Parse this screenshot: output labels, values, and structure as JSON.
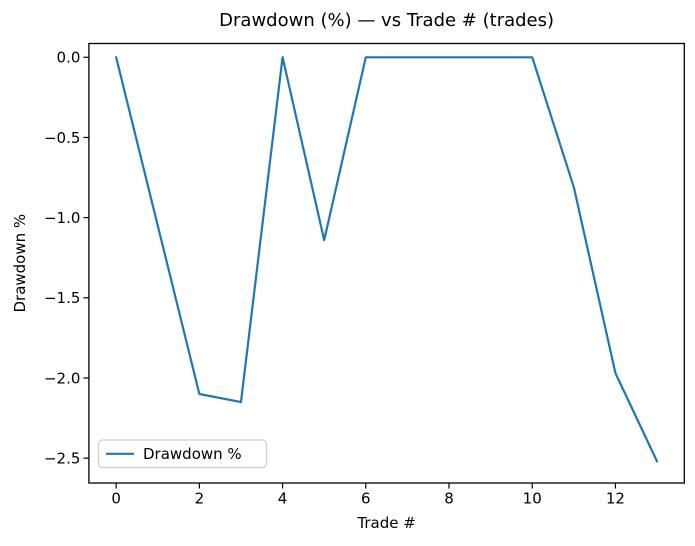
{
  "chart_data": {
    "type": "line",
    "title": "Drawdown (%) — vs Trade # (trades)",
    "xlabel": "Trade #",
    "ylabel": "Drawdown %",
    "x": [
      0,
      1,
      2,
      3,
      4,
      5,
      6,
      7,
      8,
      9,
      10,
      11,
      12,
      13
    ],
    "series": [
      {
        "name": "Drawdown %",
        "color": "#1f77b4",
        "values": [
          0.0,
          -1.05,
          -2.1,
          -2.15,
          0.0,
          -1.14,
          0.0,
          0.0,
          0.0,
          0.0,
          0.0,
          -0.81,
          -1.97,
          -2.52
        ]
      }
    ],
    "xlim": [
      -0.655,
      13.655
    ],
    "ylim": [
      -2.655,
      0.086
    ],
    "xticks": {
      "values": [
        0,
        2,
        4,
        6,
        8,
        10,
        12
      ],
      "labels": [
        "0",
        "2",
        "4",
        "6",
        "8",
        "10",
        "12"
      ]
    },
    "yticks": {
      "values": [
        0,
        -0.5,
        -1.0,
        -1.5,
        -2.0,
        -2.5
      ],
      "labels": [
        "0.0",
        "−0.5",
        "−1.0",
        "−1.5",
        "−2.0",
        "−2.5"
      ]
    },
    "legend": {
      "position": "lower left",
      "entries": [
        {
          "label": "Drawdown %",
          "color": "#1f77b4"
        }
      ]
    },
    "grid": false,
    "background": "#ffffff",
    "axis_color": "#000000"
  }
}
